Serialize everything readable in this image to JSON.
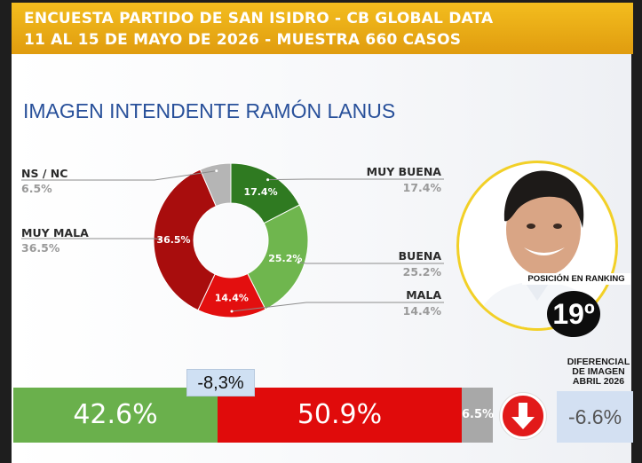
{
  "header": {
    "line1": "ENCUESTA PARTIDO DE SAN ISIDRO - CB GLOBAL DATA",
    "line2": "11 AL 15 DE MAYO DE 2026 - MUESTRA 660 CASOS"
  },
  "title": "IMAGEN INTENDENTE  RAMÓN LANUS",
  "chart_data": {
    "type": "pie",
    "title": "IMAGEN INTENDENTE  RAMÓN LANUS",
    "slices": [
      {
        "name": "MUY BUENA",
        "value": 17.4,
        "label": "17.4%",
        "legend_value": "17.4%",
        "color": "#2f7a21"
      },
      {
        "name": "BUENA",
        "value": 25.2,
        "label": "25.2%",
        "legend_value": "25.2%",
        "color": "#6fb64e"
      },
      {
        "name": "MALA",
        "value": 14.4,
        "label": "14.4%",
        "legend_value": "14.4%",
        "color": "#e30f0f"
      },
      {
        "name": "MUY MALA",
        "value": 36.5,
        "label": "36.5%",
        "legend_value": "36.5%",
        "color": "#a80d0d"
      },
      {
        "name": "NS / NC",
        "value": 6.5,
        "label": "6.5%",
        "legend_value": "6.5%",
        "color": "#b5b5b5"
      }
    ],
    "summary_bar": [
      {
        "name": "positive",
        "value": 42.6,
        "label": "42.6%",
        "color": "#6ab04c"
      },
      {
        "name": "negative",
        "value": 50.9,
        "label": "50.9%",
        "color": "#e00b0b"
      },
      {
        "name": "ns_nc",
        "value": 6.5,
        "label": "6.5%",
        "color": "#a8a8a8"
      }
    ],
    "net_difference": "-8,3%"
  },
  "ranking": {
    "label": "POSICIÓN EN RANKING",
    "position": "19º"
  },
  "diferencial": {
    "title_lines": [
      "DIFERENCIAL",
      "DE IMAGEN",
      "ABRIL 2026"
    ],
    "value": "-6.6%"
  },
  "icons": {
    "trend": "arrow-down-icon",
    "photo": "portrait-photo"
  },
  "colors": {
    "header": "#f0b41a",
    "title": "#28509a",
    "accent_ring": "#f2d027"
  }
}
